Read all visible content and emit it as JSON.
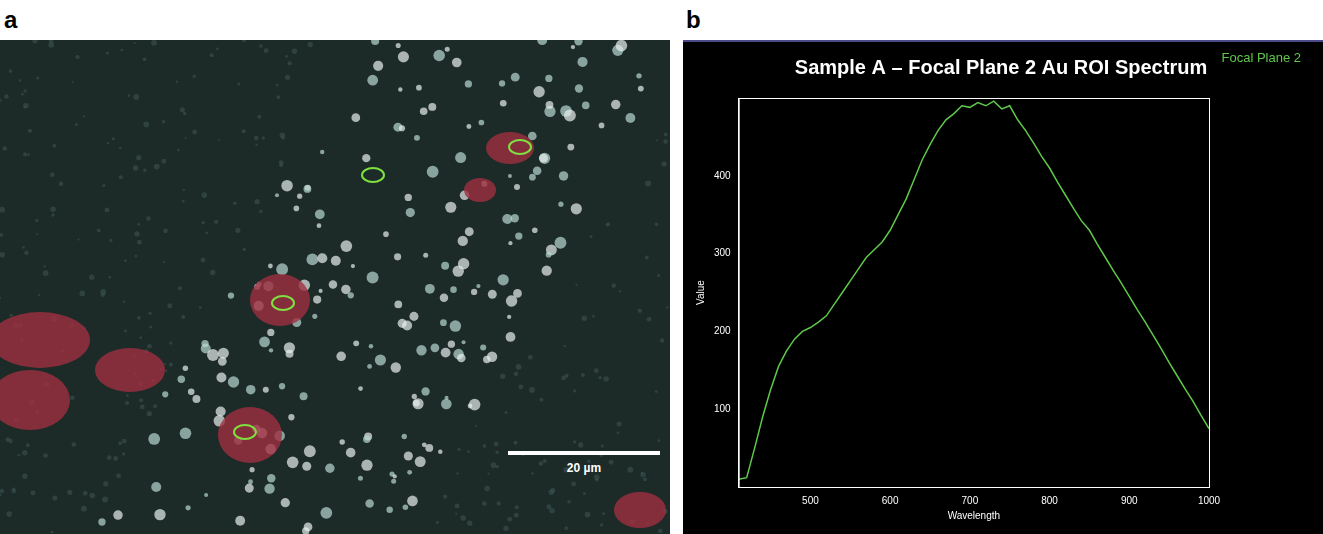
{
  "panels": [
    {
      "label": "a",
      "scale_bar": "20 µm"
    },
    {
      "label": "b"
    }
  ],
  "chart_data": {
    "type": "line",
    "title": "Sample A – Focal Plane 2 Au ROI Spectrum",
    "x_label": "Wavelength",
    "y_label": "Value",
    "x": [
      410,
      420,
      430,
      440,
      450,
      460,
      470,
      480,
      490,
      500,
      510,
      520,
      530,
      540,
      550,
      560,
      570,
      580,
      590,
      600,
      610,
      620,
      630,
      640,
      650,
      660,
      670,
      680,
      690,
      700,
      710,
      720,
      730,
      740,
      750,
      760,
      770,
      780,
      790,
      800,
      810,
      820,
      830,
      840,
      850,
      860,
      870,
      880,
      890,
      900,
      910,
      920,
      930,
      940,
      950,
      960,
      970,
      980,
      990,
      1000
    ],
    "series": [
      {
        "name": "Focal Plane 2",
        "color": "#5fc84a",
        "values": [
          10,
          12,
          50,
          90,
          125,
          155,
          175,
          190,
          200,
          205,
          212,
          220,
          235,
          250,
          265,
          280,
          295,
          305,
          315,
          330,
          350,
          370,
          395,
          420,
          440,
          458,
          472,
          480,
          490,
          488,
          494,
          490,
          496,
          486,
          490,
          472,
          458,
          442,
          425,
          410,
          392,
          375,
          358,
          342,
          330,
          312,
          295,
          278,
          262,
          245,
          228,
          212,
          195,
          178,
          160,
          143,
          126,
          110,
          92,
          75
        ]
      }
    ],
    "xlim": [
      410,
      1000
    ],
    "xticks": [
      500,
      600,
      700,
      800,
      900,
      1000
    ],
    "ylim": [
      0,
      500
    ],
    "yticks": [
      100,
      200,
      300,
      400
    ],
    "grid": false,
    "legend": "right"
  }
}
